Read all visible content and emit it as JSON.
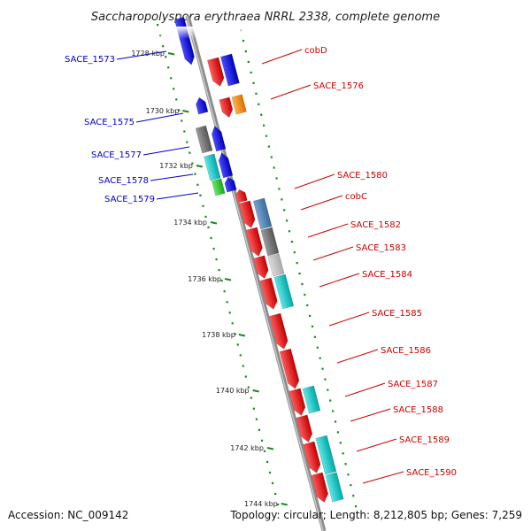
{
  "title": "Saccharopolyspora erythraea NRRL 2338, complete genome",
  "footer": {
    "accession": "Accession: NC_009142",
    "stats": "Topology: circular; Length: 8,212,805 bp; Genes: 7,259"
  },
  "colors": {
    "backbone": "#8c8c8c",
    "ruler_dots": "#1a8a1a",
    "left_label": "#0000cc",
    "right_label": "#cc0000"
  },
  "ticks": [
    "1728 kbp",
    "1730 kbp",
    "1732 kbp",
    "1734 kbp",
    "1736 kbp",
    "1738 kbp",
    "1740 kbp",
    "1742 kbp",
    "1744 kbp"
  ],
  "genes_left": [
    "SACE_1573",
    "SACE_1575",
    "SACE_1577",
    "SACE_1578",
    "SACE_1579"
  ],
  "genes_right": [
    "cobD",
    "SACE_1576",
    "SACE_1580",
    "cobC",
    "SACE_1582",
    "SACE_1583",
    "SACE_1584",
    "SACE_1585",
    "SACE_1586",
    "SACE_1587",
    "SACE_1588",
    "SACE_1589",
    "SACE_1590"
  ]
}
